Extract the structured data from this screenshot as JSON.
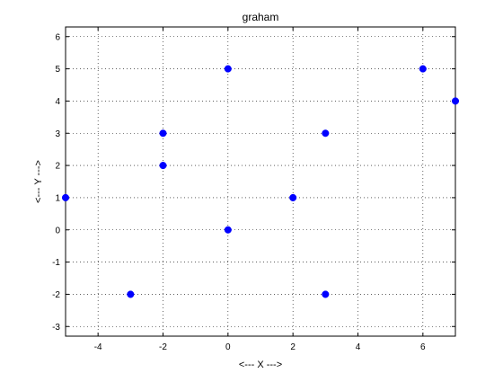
{
  "chart_data": {
    "type": "scatter",
    "title": "graham",
    "xlabel": "<--- X --->",
    "ylabel": "<--- Y --->",
    "xlim": [
      -5,
      7
    ],
    "ylim": [
      -3.3,
      6.3
    ],
    "xticks": [
      -4,
      -2,
      0,
      2,
      4,
      6
    ],
    "yticks": [
      -3,
      -2,
      -1,
      0,
      1,
      2,
      3,
      4,
      5,
      6
    ],
    "grid": true,
    "grid_style": "dotted",
    "marker_color": "#0000ff",
    "points": [
      {
        "x": -5,
        "y": 1
      },
      {
        "x": -3,
        "y": -2
      },
      {
        "x": -2,
        "y": 2
      },
      {
        "x": -2,
        "y": 3
      },
      {
        "x": 0,
        "y": 0
      },
      {
        "x": 0,
        "y": 5
      },
      {
        "x": 2,
        "y": 1
      },
      {
        "x": 3,
        "y": -2
      },
      {
        "x": 3,
        "y": 3
      },
      {
        "x": 6,
        "y": 5
      },
      {
        "x": 7,
        "y": 4
      }
    ]
  }
}
